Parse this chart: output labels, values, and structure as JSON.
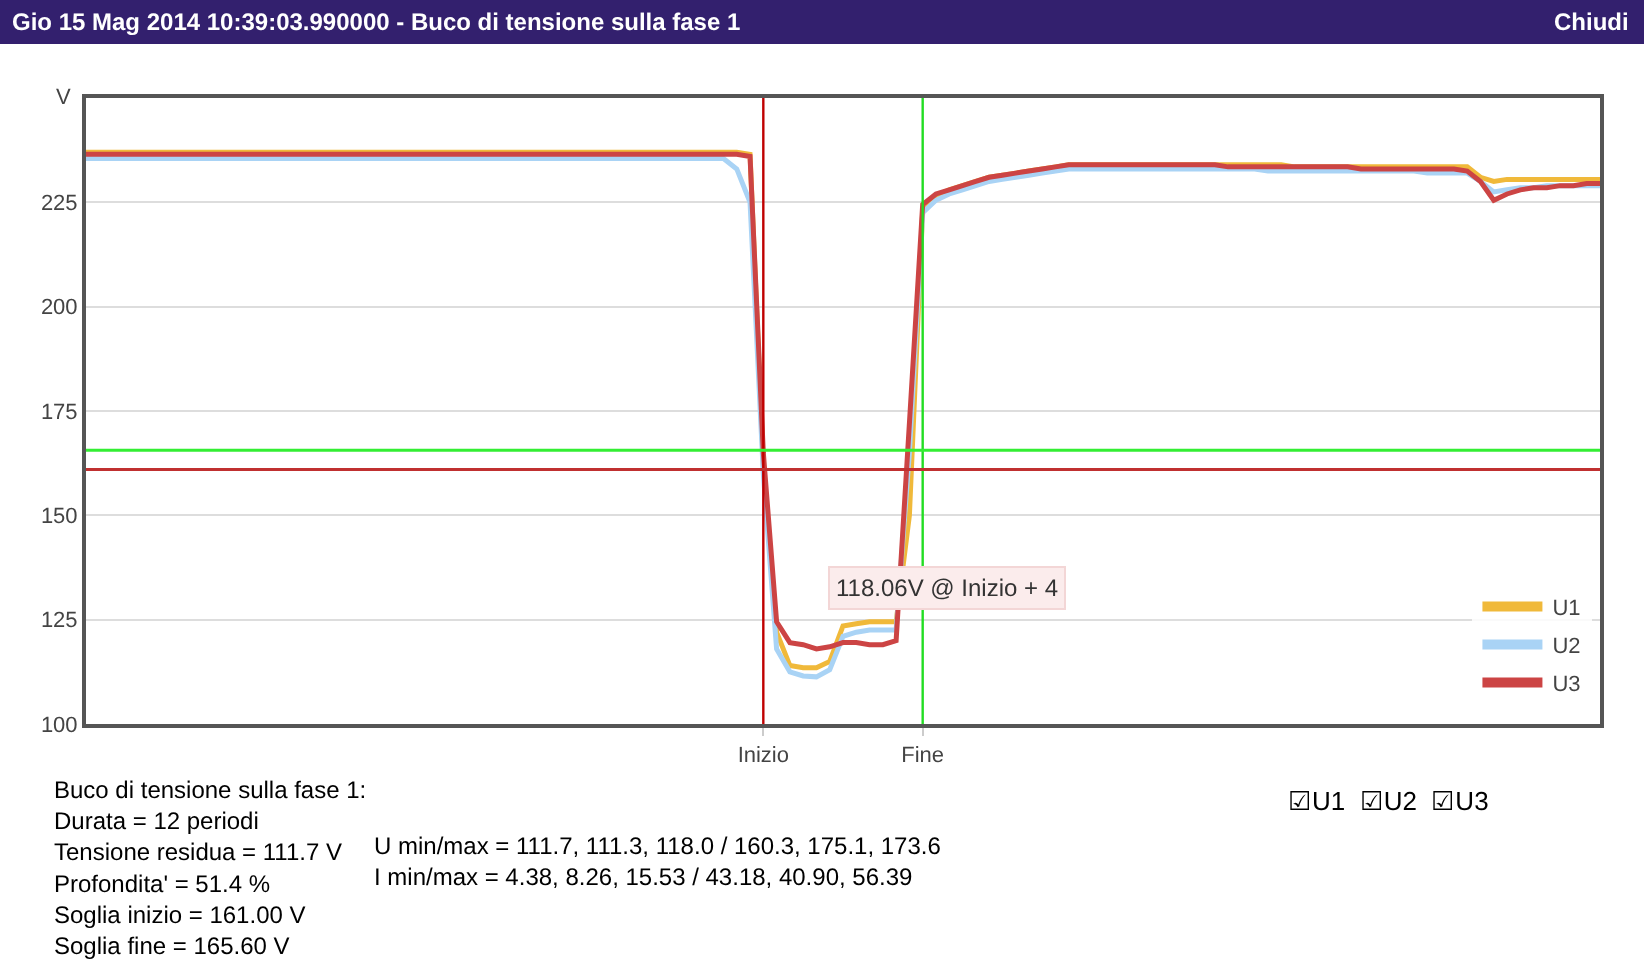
{
  "chart_data": {
    "type": "line",
    "title": "Gio 15 Mag 2014 10:39:03.990000 - Buco di tensione sulla fase 1",
    "ylabel": "V",
    "categories": [
      null,
      null,
      null,
      null,
      null,
      null,
      null,
      null,
      null,
      null,
      null,
      null,
      null,
      null,
      null,
      null,
      null,
      null,
      null,
      null,
      null,
      null,
      null,
      null,
      null,
      null,
      null,
      null,
      null,
      null,
      null,
      null,
      null,
      null,
      null,
      null,
      null,
      null,
      null,
      null,
      null,
      null,
      null,
      null,
      null,
      null,
      null,
      null,
      null,
      null,
      null,
      "Inizio",
      null,
      null,
      null,
      null,
      null,
      null,
      null,
      null,
      null,
      null,
      null,
      "Fine",
      null,
      null,
      null,
      null,
      null,
      null,
      null,
      null,
      null,
      null,
      null,
      null,
      null,
      null,
      null,
      null,
      null,
      null,
      null,
      null,
      null,
      null,
      null,
      null,
      null,
      null,
      null,
      null,
      null,
      null,
      null,
      null,
      null,
      null,
      null,
      null,
      null,
      null,
      null,
      null,
      null,
      null,
      null,
      null,
      null,
      null,
      null,
      null,
      null,
      null,
      null
    ],
    "ylim": [
      100,
      250
    ],
    "yticks": [
      100,
      125,
      150,
      175,
      200,
      225
    ],
    "series": [
      {
        "name": "U1",
        "color": "#f0b93a",
        "values": [
          237,
          237,
          237,
          237,
          237,
          237,
          237,
          237,
          237,
          237,
          237,
          237,
          237,
          237,
          237,
          237,
          237,
          237,
          237,
          237,
          237,
          237,
          237,
          237,
          237,
          237,
          237,
          237,
          237,
          237,
          237,
          237,
          237,
          237,
          237,
          237,
          237,
          237,
          237,
          237,
          237,
          237,
          237,
          237,
          237,
          237,
          237,
          237,
          237,
          237,
          236.5,
          162,
          122,
          114,
          113.5,
          113.5,
          115,
          123.5,
          124,
          124.5,
          124.5,
          124.5,
          150,
          223,
          226.5,
          228,
          229,
          230,
          231,
          231.5,
          232,
          232.5,
          233,
          233.5,
          234,
          234,
          234,
          234,
          234,
          234,
          234,
          234,
          234,
          234,
          234,
          234,
          234,
          234,
          234,
          234,
          234,
          233.5,
          233.5,
          233.5,
          233.5,
          233.5,
          233.5,
          233.5,
          233.5,
          233.5,
          233.5,
          233.5,
          233.5,
          233.5,
          233.5,
          231,
          230,
          230.5,
          230.5,
          230.5,
          230.5,
          230.5,
          230.5,
          230.5,
          230.5
        ]
      },
      {
        "name": "U2",
        "color": "#a9d3f5",
        "values": [
          235.5,
          235.5,
          235.5,
          235.5,
          235.5,
          235.5,
          235.5,
          235.5,
          235.5,
          235.5,
          235.5,
          235.5,
          235.5,
          235.5,
          235.5,
          235.5,
          235.5,
          235.5,
          235.5,
          235.5,
          235.5,
          235.5,
          235.5,
          235.5,
          235.5,
          235.5,
          235.5,
          235.5,
          235.5,
          235.5,
          235.5,
          235.5,
          235.5,
          235.5,
          235.5,
          235.5,
          235.5,
          235.5,
          235.5,
          235.5,
          235.5,
          235.5,
          235.5,
          235.5,
          235.5,
          235.5,
          235.5,
          235.5,
          235.5,
          233,
          225,
          160,
          118,
          112.5,
          111.5,
          111.3,
          113,
          121,
          122,
          122.5,
          122.5,
          122.5,
          165,
          222.5,
          225.5,
          227,
          228,
          229,
          230,
          230.5,
          231,
          231.5,
          232,
          232.5,
          233,
          233,
          233,
          233,
          233,
          233,
          233,
          233,
          233,
          233,
          233,
          233,
          233,
          233,
          233,
          232.5,
          232.5,
          232.5,
          232.5,
          232.5,
          232.5,
          232.5,
          232.5,
          232.5,
          232.5,
          232.5,
          232.5,
          232,
          232,
          232,
          232,
          230,
          227.5,
          228,
          228.5,
          228.5,
          229,
          229,
          229,
          229,
          229
        ]
      },
      {
        "name": "U3",
        "color": "#cc4444",
        "values": [
          236.5,
          236.5,
          236.5,
          236.5,
          236.5,
          236.5,
          236.5,
          236.5,
          236.5,
          236.5,
          236.5,
          236.5,
          236.5,
          236.5,
          236.5,
          236.5,
          236.5,
          236.5,
          236.5,
          236.5,
          236.5,
          236.5,
          236.5,
          236.5,
          236.5,
          236.5,
          236.5,
          236.5,
          236.5,
          236.5,
          236.5,
          236.5,
          236.5,
          236.5,
          236.5,
          236.5,
          236.5,
          236.5,
          236.5,
          236.5,
          236.5,
          236.5,
          236.5,
          236.5,
          236.5,
          236.5,
          236.5,
          236.5,
          236.5,
          236.5,
          236,
          165,
          124.5,
          119.5,
          119,
          118,
          118.5,
          119.5,
          119.5,
          119,
          119,
          120,
          172,
          224.5,
          227,
          228,
          229,
          230,
          231,
          231.5,
          232,
          232.5,
          233,
          233.5,
          234,
          234,
          234,
          234,
          234,
          234,
          234,
          234,
          234,
          234,
          234,
          234,
          233.5,
          233.5,
          233.5,
          233.5,
          233.5,
          233.5,
          233.5,
          233.5,
          233.5,
          233.5,
          233,
          233,
          233,
          233,
          233,
          233,
          233,
          233,
          232.5,
          230,
          225.5,
          227,
          228,
          228.5,
          228.5,
          229,
          229,
          229.5,
          229.5
        ]
      }
    ],
    "ref_lines": [
      {
        "axis": "x",
        "value": "Inizio",
        "color": "#c00000"
      },
      {
        "axis": "x",
        "value": "Fine",
        "color": "#22dd22"
      },
      {
        "axis": "y",
        "value": 165.6,
        "color": "#33ee33"
      },
      {
        "axis": "y",
        "value": 161.0,
        "color": "#c03030"
      }
    ],
    "annotations": [
      "118.06V @ Inizio + 4",
      "Chiudi",
      "Buco di tensione sulla fase 1:\nDurata = 12 periodi\nTensione residua = 111.7 V\nProfondita' = 51.4 %\nSoglia inizio = 161.00 V\nSoglia fine = 165.60 V",
      "U min/max = 111.7, 111.3, 118.0 / 160.3, 175.1, 173.6\nI min/max = 4.38, 8.26, 15.53 / 43.18, 40.90, 56.39",
      "☑U1  ☑U2  ☑U3"
    ],
    "grid": "y",
    "legend": "bottom right",
    "line_style": "solid"
  }
}
